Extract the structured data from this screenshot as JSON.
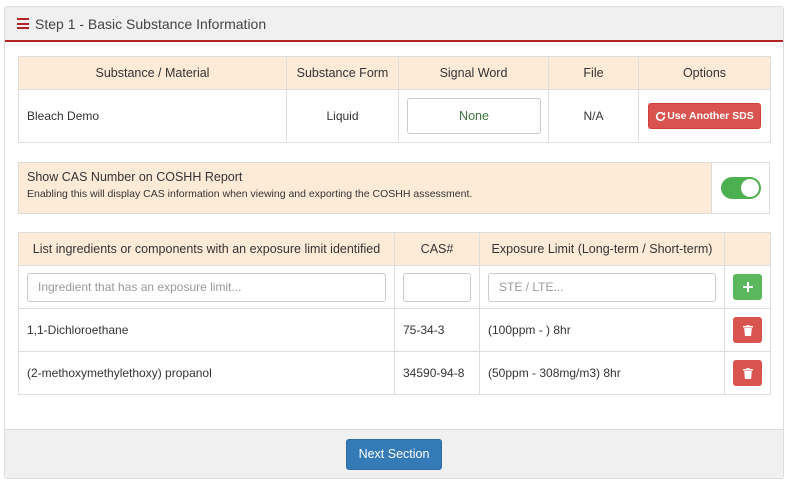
{
  "header": {
    "title": "Step 1 - Basic Substance Information",
    "icon": "menu-icon"
  },
  "substance_table": {
    "columns": [
      "Substance / Material",
      "Substance Form",
      "Signal Word",
      "File",
      "Options"
    ],
    "row": {
      "name": "Bleach Demo",
      "form": "Liquid",
      "signal_word": "None",
      "file": "N/A",
      "option_button": "Use Another SDS"
    }
  },
  "cas_setting": {
    "title": "Show CAS Number on COSHH Report",
    "description": "Enabling this will display CAS information when viewing and exporting the COSHH assessment.",
    "enabled": true
  },
  "ingredients_table": {
    "columns": [
      "List ingredients or components with an exposure limit identified",
      "CAS#",
      "Exposure Limit (Long-term / Short-term)",
      ""
    ],
    "new_row": {
      "ingredient_placeholder": "Ingredient that has an exposure limit...",
      "cas_placeholder": "",
      "limit_placeholder": "STE / LTE..."
    },
    "rows": [
      {
        "ingredient": "1,1-Dichloroethane",
        "cas": "75-34-3",
        "limit": "(100ppm - ) 8hr"
      },
      {
        "ingredient": "(2-methoxymethylethoxy) propanol",
        "cas": "34590-94-8",
        "limit": "(50ppm - 308mg/m3) 8hr"
      }
    ]
  },
  "footer": {
    "next_button": "Next Section"
  },
  "colors": {
    "accent_red": "#b32424",
    "header_bg": "#fdebd8",
    "toggle_on": "#4caf50",
    "primary": "#337ab7",
    "danger": "#d9534f",
    "success": "#5cb85c"
  }
}
